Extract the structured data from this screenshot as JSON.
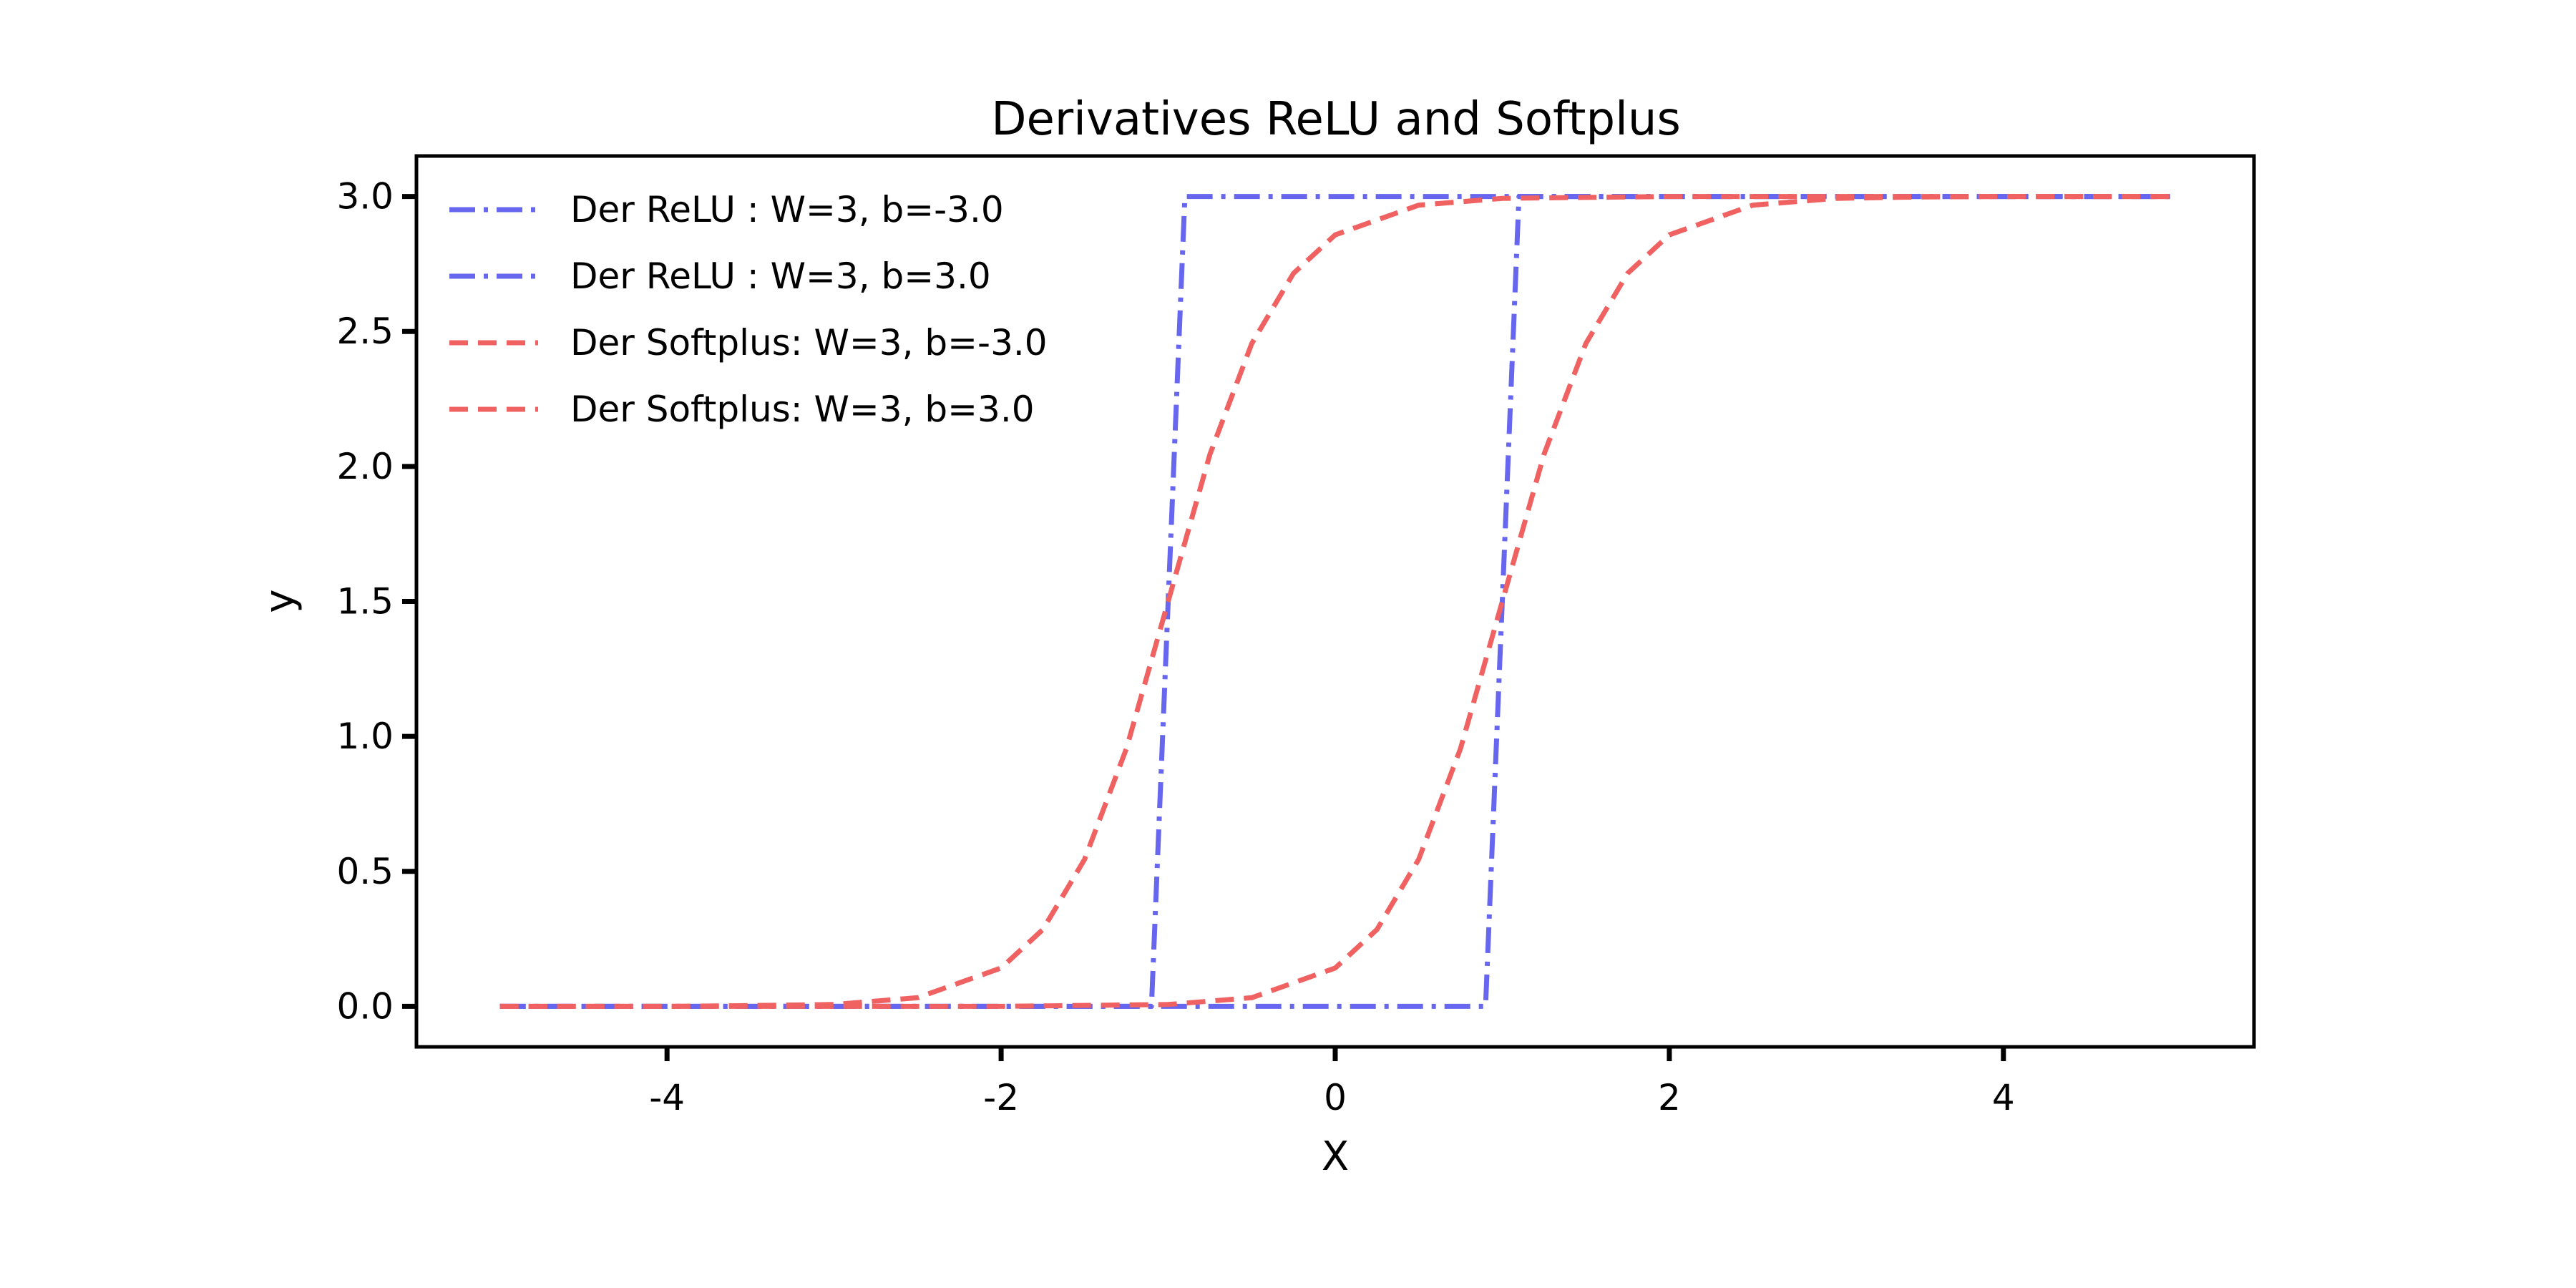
{
  "chart_data": {
    "type": "line",
    "title": "Derivatives ReLU and Softplus",
    "xlabel": "X",
    "ylabel": "y",
    "xlim": [
      -5.5,
      5.5
    ],
    "ylim": [
      -0.15,
      3.15
    ],
    "xticks": [
      -4,
      -2,
      0,
      2,
      4
    ],
    "xtick_labels": [
      "-4",
      "-2",
      "0",
      "2",
      "4"
    ],
    "yticks": [
      0.0,
      0.5,
      1.0,
      1.5,
      2.0,
      2.5,
      3.0
    ],
    "ytick_labels": [
      "0.0",
      "0.5",
      "1.0",
      "1.5",
      "2.0",
      "2.5",
      "3.0"
    ],
    "grid": false,
    "legend_position": "top-left",
    "series": [
      {
        "name": "Der ReLU : W=3, b=-3.0",
        "color": "#6666ee",
        "style": "dashdot",
        "x": [
          -5.0,
          -3.0,
          -1.1,
          -0.9,
          1.0,
          3.0,
          5.0
        ],
        "y": [
          0.0,
          0.0,
          0.0,
          3.0,
          3.0,
          3.0,
          3.0
        ]
      },
      {
        "name": "Der ReLU : W=3, b=3.0",
        "color": "#6666ee",
        "style": "dashdot",
        "x": [
          -5.0,
          -3.0,
          0.0,
          0.9,
          1.1,
          3.0,
          5.0
        ],
        "y": [
          0.0,
          0.0,
          0.0,
          0.0,
          3.0,
          3.0,
          3.0
        ]
      },
      {
        "name": "Der Softplus: W=3, b=-3.0",
        "color": "#f06262",
        "style": "dashed",
        "x": [
          -5.0,
          -4.0,
          -3.5,
          -3.0,
          -2.5,
          -2.0,
          -1.75,
          -1.5,
          -1.25,
          -1.0,
          -0.75,
          -0.5,
          -0.25,
          0.0,
          0.5,
          1.0,
          2.0,
          3.0,
          4.0,
          5.0
        ],
        "y": [
          0.0,
          0.0,
          0.003,
          0.007,
          0.032,
          0.142,
          0.285,
          0.545,
          0.955,
          1.5,
          2.045,
          2.455,
          2.715,
          2.858,
          2.968,
          2.993,
          3.0,
          3.0,
          3.0,
          3.0
        ]
      },
      {
        "name": "Der Softplus: W=3, b=3.0",
        "color": "#f06262",
        "style": "dashed",
        "x": [
          -5.0,
          -3.0,
          -2.0,
          -1.0,
          -0.5,
          0.0,
          0.25,
          0.5,
          0.75,
          1.0,
          1.25,
          1.5,
          1.75,
          2.0,
          2.5,
          3.0,
          3.5,
          4.0,
          5.0
        ],
        "y": [
          0.0,
          0.0,
          0.0,
          0.007,
          0.032,
          0.142,
          0.285,
          0.545,
          0.955,
          1.5,
          2.045,
          2.455,
          2.715,
          2.858,
          2.968,
          2.993,
          2.998,
          3.0,
          3.0
        ]
      }
    ]
  }
}
